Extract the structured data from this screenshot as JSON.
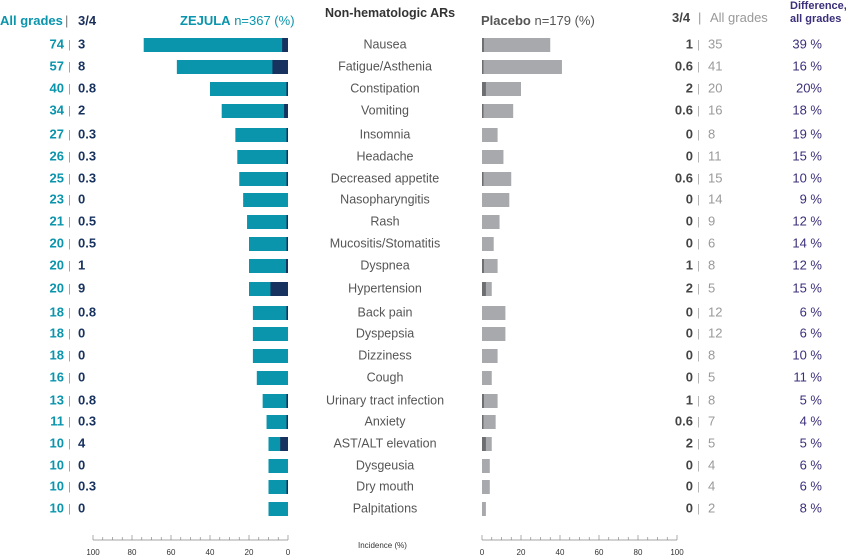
{
  "chart_data": {
    "type": "bar",
    "title": "Non-hematologic ARs",
    "xlabel": "Incidence (%)",
    "header_left_all": "All grades",
    "header_left_34": "3/4",
    "header_right_34": "3/4",
    "header_right_all": "All grades",
    "header_diff_line1": "Difference,",
    "header_diff_line2": "all grades",
    "xlim": [
      0,
      100
    ],
    "xticks": [
      "100",
      "80",
      "60",
      "40",
      "20",
      "0"
    ],
    "xticks_right": [
      "0",
      "20",
      "40",
      "60",
      "80",
      "100"
    ],
    "colors": {
      "zejula_all": "#0a95ad",
      "zejula_34": "#17325f",
      "placebo_all": "#a7a9ac",
      "placebo_34": "#6d6e71",
      "difference_text": "#3a2f7a",
      "label_text": "#555555"
    },
    "series": [
      {
        "name": "ZEJULA",
        "n_label": "n=367 (%)"
      },
      {
        "name": "Placebo",
        "n_label": "n=179 (%)"
      }
    ],
    "categories": [
      "Nausea",
      "Fatigue/Asthenia",
      "Constipation",
      "Vomiting",
      "Insomnia",
      "Headache",
      "Decreased appetite",
      "Nasopharyngitis",
      "Rash",
      "Mucositis/Stomatitis",
      "Dyspnea",
      "Hypertension",
      "Back pain",
      "Dyspepsia",
      "Dizziness",
      "Cough",
      "Urinary tract infection",
      "Anxiety",
      "AST/ALT elevation",
      "Dysgeusia",
      "Dry mouth",
      "Palpitations"
    ],
    "zejula_all": [
      "74",
      "57",
      "40",
      "34",
      "27",
      "26",
      "25",
      "23",
      "21",
      "20",
      "20",
      "20",
      "18",
      "18",
      "18",
      "16",
      "13",
      "11",
      "10",
      "10",
      "10",
      "10"
    ],
    "zejula_34": [
      "3",
      "8",
      "0.8",
      "2",
      "0.3",
      "0.3",
      "0.3",
      "0",
      "0.5",
      "0.5",
      "1",
      "9",
      "0.8",
      "0",
      "0",
      "0",
      "0.8",
      "0.3",
      "4",
      "0",
      "0.3",
      "0"
    ],
    "placebo_34": [
      "1",
      "0.6",
      "2",
      "0.6",
      "0",
      "0",
      "0.6",
      "0",
      "0",
      "0",
      "1",
      "2",
      "0",
      "0",
      "0",
      "0",
      "1",
      "0.6",
      "2",
      "0",
      "0",
      "0"
    ],
    "placebo_all": [
      "35",
      "41",
      "20",
      "16",
      "8",
      "11",
      "15",
      "14",
      "9",
      "6",
      "8",
      "5",
      "12",
      "12",
      "8",
      "5",
      "8",
      "7",
      "5",
      "4",
      "4",
      "2"
    ],
    "difference": [
      "39 %",
      "16 %",
      "20%",
      "18 %",
      "19 %",
      "15 %",
      "10 %",
      "9 %",
      "12 %",
      "14 %",
      "12 %",
      "15 %",
      "6 %",
      "6 %",
      "10 %",
      "11 %",
      "5 %",
      "4 %",
      "5 %",
      "6 %",
      "6 %",
      "8 %"
    ]
  }
}
